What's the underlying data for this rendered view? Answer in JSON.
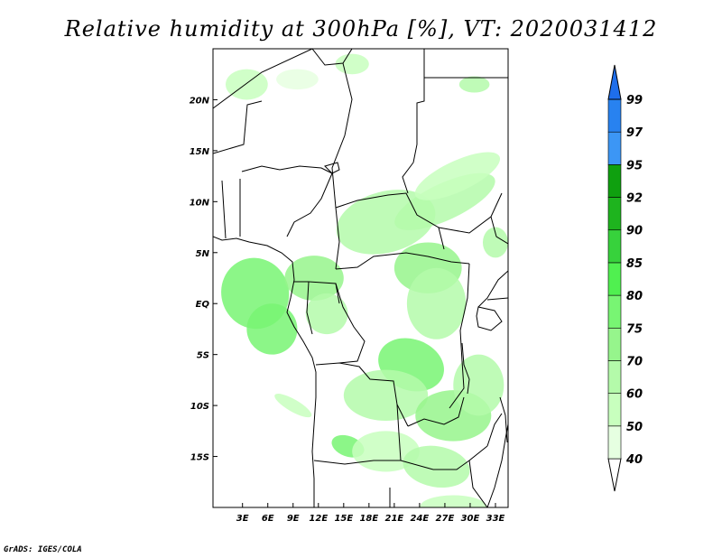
{
  "title": "Relative humidity at 300hPa [%], VT: 2020031412",
  "credit": "GrADS: IGES/COLA",
  "map": {
    "lon_range": [
      -0.5,
      34.5
    ],
    "lat_range": [
      -20.0,
      25.0
    ],
    "lon_ticks": [
      {
        "value": 3,
        "label": "3E"
      },
      {
        "value": 6,
        "label": "6E"
      },
      {
        "value": 9,
        "label": "9E"
      },
      {
        "value": 12,
        "label": "12E"
      },
      {
        "value": 15,
        "label": "15E"
      },
      {
        "value": 18,
        "label": "18E"
      },
      {
        "value": 21,
        "label": "21E"
      },
      {
        "value": 24,
        "label": "24E"
      },
      {
        "value": 27,
        "label": "27E"
      },
      {
        "value": 30,
        "label": "30E"
      },
      {
        "value": 33,
        "label": "33E"
      }
    ],
    "lat_ticks": [
      {
        "value": 20,
        "label": "20N"
      },
      {
        "value": 15,
        "label": "15N"
      },
      {
        "value": 10,
        "label": "10N"
      },
      {
        "value": 5,
        "label": "5N"
      },
      {
        "value": 0,
        "label": "EQ"
      },
      {
        "value": -5,
        "label": "5S"
      },
      {
        "value": -10,
        "label": "10S"
      },
      {
        "value": -15,
        "label": "15S"
      }
    ]
  },
  "colorbar": {
    "segments": [
      {
        "from": 40,
        "to": 50,
        "color": "#e6ffe1"
      },
      {
        "from": 50,
        "to": 60,
        "color": "#c8ffbe"
      },
      {
        "from": 60,
        "to": 70,
        "color": "#b4faaa"
      },
      {
        "from": 70,
        "to": 75,
        "color": "#96f58c"
      },
      {
        "from": 75,
        "to": 80,
        "color": "#78f573"
      },
      {
        "from": 80,
        "to": 85,
        "color": "#50f050"
      },
      {
        "from": 85,
        "to": 90,
        "color": "#37d23c"
      },
      {
        "from": 90,
        "to": 92,
        "color": "#1eb41e"
      },
      {
        "from": 92,
        "to": 95,
        "color": "#0fa00f"
      },
      {
        "from": 95,
        "to": 97,
        "color": "#3c96f5"
      },
      {
        "from": 97,
        "to": 99,
        "color": "#2882f0"
      },
      {
        "from": 99,
        "to": 100,
        "color": "#1e6eeb"
      }
    ],
    "labels": [
      "40",
      "50",
      "60",
      "70",
      "75",
      "80",
      "85",
      "90",
      "92",
      "95",
      "97",
      "99"
    ]
  },
  "humidity_patches": [
    {
      "lon": 4.5,
      "lat": 1.0,
      "rx": 4.0,
      "ry": 3.5,
      "rot": -20,
      "level": 75
    },
    {
      "lon": 6.5,
      "lat": -2.5,
      "rx": 3.0,
      "ry": 2.5,
      "rot": -10,
      "level": 75
    },
    {
      "lon": 11.5,
      "lat": 2.5,
      "rx": 3.5,
      "ry": 2.2,
      "rot": 0,
      "level": 70
    },
    {
      "lon": 13.0,
      "lat": -1.0,
      "rx": 2.5,
      "ry": 2.0,
      "rot": 0,
      "level": 60
    },
    {
      "lon": 20.0,
      "lat": 8.0,
      "rx": 6.0,
      "ry": 3.0,
      "rot": -15,
      "level": 60
    },
    {
      "lon": 27.0,
      "lat": 10.0,
      "rx": 6.5,
      "ry": 1.8,
      "rot": -25,
      "level": 60
    },
    {
      "lon": 28.5,
      "lat": 12.5,
      "rx": 5.5,
      "ry": 1.5,
      "rot": -25,
      "level": 50
    },
    {
      "lon": 25.0,
      "lat": 3.5,
      "rx": 4.0,
      "ry": 2.5,
      "rot": 0,
      "level": 70
    },
    {
      "lon": 26.0,
      "lat": 0.0,
      "rx": 3.5,
      "ry": 3.5,
      "rot": 0,
      "level": 60
    },
    {
      "lon": 23.0,
      "lat": -6.0,
      "rx": 4.0,
      "ry": 2.5,
      "rot": 20,
      "level": 75
    },
    {
      "lon": 20.0,
      "lat": -9.0,
      "rx": 5.0,
      "ry": 2.5,
      "rot": 0,
      "level": 60
    },
    {
      "lon": 28.0,
      "lat": -11.0,
      "rx": 4.5,
      "ry": 2.5,
      "rot": 0,
      "level": 70
    },
    {
      "lon": 31.0,
      "lat": -8.0,
      "rx": 3.0,
      "ry": 3.0,
      "rot": 0,
      "level": 60
    },
    {
      "lon": 15.5,
      "lat": -14.0,
      "rx": 2.0,
      "ry": 1.0,
      "rot": 20,
      "level": 75
    },
    {
      "lon": 20.0,
      "lat": -14.5,
      "rx": 4.0,
      "ry": 2.0,
      "rot": 0,
      "level": 50
    },
    {
      "lon": 26.0,
      "lat": -16.0,
      "rx": 4.0,
      "ry": 2.0,
      "rot": 10,
      "level": 60
    },
    {
      "lon": 28.0,
      "lat": -20.0,
      "rx": 4.0,
      "ry": 1.2,
      "rot": 0,
      "level": 50
    },
    {
      "lon": 3.5,
      "lat": 21.5,
      "rx": 2.5,
      "ry": 1.5,
      "rot": 0,
      "level": 50
    },
    {
      "lon": 9.5,
      "lat": 22.0,
      "rx": 2.5,
      "ry": 1.0,
      "rot": 0,
      "level": 40
    },
    {
      "lon": 16.0,
      "lat": 23.5,
      "rx": 2.0,
      "ry": 1.0,
      "rot": 0,
      "level": 50
    },
    {
      "lon": 30.5,
      "lat": 21.5,
      "rx": 1.8,
      "ry": 0.8,
      "rot": 0,
      "level": 60
    },
    {
      "lon": 9.0,
      "lat": -10.0,
      "rx": 2.5,
      "ry": 0.6,
      "rot": 30,
      "level": 50
    },
    {
      "lon": 33.0,
      "lat": 6.0,
      "rx": 1.5,
      "ry": 1.5,
      "rot": 0,
      "level": 60
    }
  ]
}
